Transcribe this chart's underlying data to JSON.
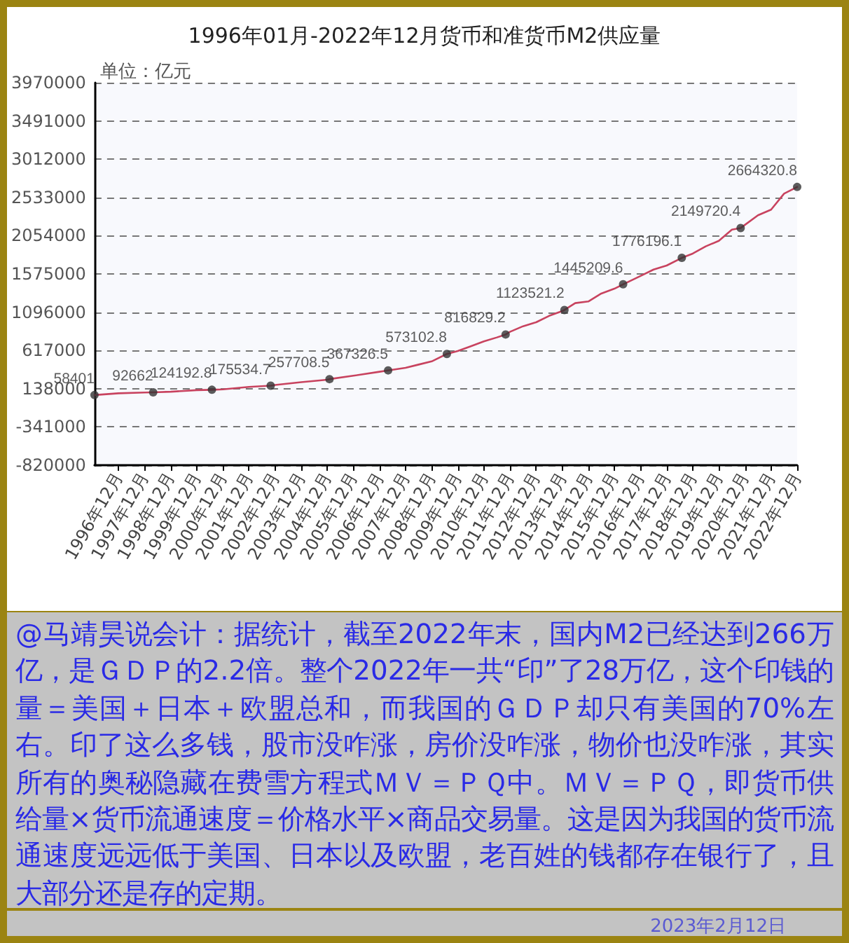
{
  "chart_data": {
    "type": "line",
    "title": "1996年01月-2022年12月货币和准货币M2供应量",
    "ylabel": "单位：亿元",
    "xlim": [
      "1996-01",
      "2022-12"
    ],
    "xticks": [
      {
        "value": "1996-12",
        "label": "1996年12月"
      },
      {
        "value": "1997-12",
        "label": "1997年12月"
      },
      {
        "value": "1998-12",
        "label": "1998年12月"
      },
      {
        "value": "1999-12",
        "label": "1999年12月"
      },
      {
        "value": "2000-12",
        "label": "2000年12月"
      },
      {
        "value": "2001-12",
        "label": "2001年12月"
      },
      {
        "value": "2002-12",
        "label": "2002年12月"
      },
      {
        "value": "2003-12",
        "label": "2003年12月"
      },
      {
        "value": "2004-12",
        "label": "2004年12月"
      },
      {
        "value": "2005-12",
        "label": "2005年12月"
      },
      {
        "value": "2006-12",
        "label": "2006年12月"
      },
      {
        "value": "2007-12",
        "label": "2007年12月"
      },
      {
        "value": "2008-12",
        "label": "2008年12月"
      },
      {
        "value": "2009-12",
        "label": "2009年12月"
      },
      {
        "value": "2010-12",
        "label": "2010年12月"
      },
      {
        "value": "2011-12",
        "label": "2011年12月"
      },
      {
        "value": "2012-12",
        "label": "2012年12月"
      },
      {
        "value": "2013-12",
        "label": "2013年12月"
      },
      {
        "value": "2014-12",
        "label": "2014年12月"
      },
      {
        "value": "2015-12",
        "label": "2015年12月"
      },
      {
        "value": "2016-12",
        "label": "2016年12月"
      },
      {
        "value": "2017-12",
        "label": "2017年12月"
      },
      {
        "value": "2018-12",
        "label": "2018年12月"
      },
      {
        "value": "2019-12",
        "label": "2019年12月"
      },
      {
        "value": "2020-12",
        "label": "2020年12月"
      },
      {
        "value": "2021-12",
        "label": "2021年12月"
      },
      {
        "value": "2022-12",
        "label": "2022年12月"
      }
    ],
    "ylim": [
      -820000,
      3970000
    ],
    "yticks": [
      -820000,
      -341000,
      138000,
      617000,
      1096000,
      1575000,
      2054000,
      2533000,
      3012000,
      3491000,
      3970000
    ],
    "grid": "y",
    "series": [
      {
        "color": "#c8435f",
        "marker": "none",
        "line_style": "solid",
        "x": [
          "1996-01",
          "1996-12",
          "1997-12",
          "1998-04",
          "1998-12",
          "1999-12",
          "2000-07",
          "2000-12",
          "2001-12",
          "2002-10",
          "2002-12",
          "2003-12",
          "2004-12",
          "2005-01",
          "2005-12",
          "2006-12",
          "2007-04",
          "2007-12",
          "2008-06",
          "2008-12",
          "2009-07",
          "2009-12",
          "2010-06",
          "2010-12",
          "2011-06",
          "2011-10",
          "2011-12",
          "2012-06",
          "2012-12",
          "2013-06",
          "2013-12",
          "2014-01",
          "2014-06",
          "2014-12",
          "2015-06",
          "2015-12",
          "2016-04",
          "2016-12",
          "2017-06",
          "2017-12",
          "2018-07",
          "2018-12",
          "2019-06",
          "2019-12",
          "2020-06",
          "2020-10",
          "2020-12",
          "2021-06",
          "2021-12",
          "2022-06",
          "2022-12"
        ],
        "values": [
          58401,
          80000,
          90000,
          92662,
          100000,
          120000,
          124192.8,
          130000,
          160000,
          175534.7,
          185000,
          220000,
          250000,
          257708.5,
          300000,
          350000,
          367326.5,
          400000,
          440000,
          480000,
          573102.8,
          610000,
          670000,
          730000,
          780000,
          816829.2,
          850000,
          920000,
          970000,
          1050000,
          1110000,
          1123521.2,
          1210000,
          1230000,
          1330000,
          1390000,
          1445209.6,
          1550000,
          1630000,
          1680000,
          1776196.1,
          1830000,
          1920000,
          1990000,
          2130000,
          2149720.4,
          2190000,
          2310000,
          2380000,
          2580000,
          2664320.8
        ]
      },
      {
        "type": "scatter",
        "color": "#333333",
        "marker": "circle",
        "x": [
          "1996-01",
          "1998-04",
          "2000-07",
          "2002-10",
          "2005-01",
          "2007-04",
          "2009-07",
          "2011-10",
          "2014-01",
          "2016-04",
          "2018-07",
          "2020-10",
          "2022-12"
        ],
        "values": [
          58401,
          92662,
          124192.8,
          175534.7,
          257708.5,
          367326.5,
          573102.8,
          816829.2,
          1123521.2,
          1445209.6,
          1776196.1,
          2149720.4,
          2664320.8
        ],
        "value_labels": [
          "58401",
          "92662",
          "124192.8",
          "175534.7",
          "257708.5",
          "367326.5",
          "573102.8",
          "816829.2",
          "1123521.2",
          "1445209.6",
          "1776196.1",
          "2149720.4",
          "2664320.8"
        ]
      }
    ],
    "annotations": [
      "@马靖昊说会计：据统计，截至2022年末，国内M2已经达到266万亿，是ＧＤＰ的2.2倍。整个2022年一共“印”了28万亿，这个印钱的量＝美国＋日本＋欧盟总和，而我国的ＧＤＰ却只有美国的70%左右。印了这么多钱，股市没咋涨，房价没咋涨，物价也没咋涨，其实所有的奥秘隐藏在费雪方程式ＭＶ＝ＰＱ中。ＭＶ＝ＰＱ，即货币供给量×货币流通速度＝价格水平×商品交易量。这是因为我国的货币流通速度远远低于美国、日本以及欧盟，老百姓的钱都存在银行了，且大部分还是存的定期。",
      "2023年2月12日"
    ]
  }
}
